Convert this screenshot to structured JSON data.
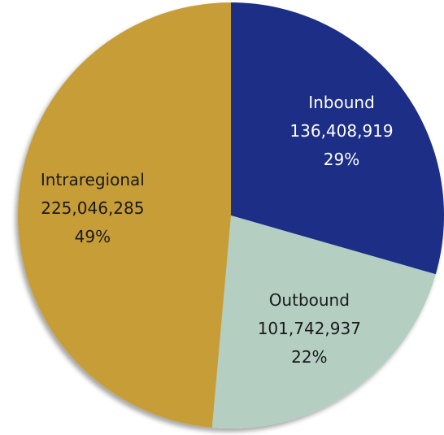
{
  "chart_data": {
    "type": "pie",
    "categories": [
      "Inbound",
      "Outbound",
      "Intraregional"
    ],
    "values": [
      136408919,
      101742937,
      225046285
    ],
    "value_labels": [
      "136,408,919",
      "101,742,937",
      "225,046,285"
    ],
    "percent_labels": [
      "29%",
      "22%",
      "49%"
    ],
    "colors": [
      "#1b2d86",
      "#b4cfc2",
      "#c79d37"
    ],
    "label_colors": [
      "#ffffff",
      "#1a1a1a",
      "#1a1a1a"
    ]
  }
}
